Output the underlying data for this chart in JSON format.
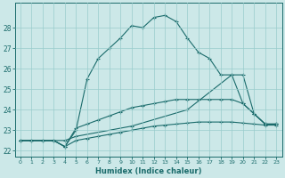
{
  "xlabel": "Humidex (Indice chaleur)",
  "bg_color": "#cce8e8",
  "grid_color": "#99cccc",
  "line_color": "#1a6b6b",
  "xlim": [
    -0.5,
    23.5
  ],
  "ylim": [
    21.7,
    29.2
  ],
  "xticks": [
    0,
    1,
    2,
    3,
    4,
    5,
    6,
    7,
    8,
    9,
    10,
    11,
    12,
    13,
    14,
    15,
    16,
    17,
    18,
    19,
    20,
    21,
    22,
    23
  ],
  "yticks": [
    22,
    23,
    24,
    25,
    26,
    27,
    28
  ],
  "series1": [
    [
      0,
      22.5
    ],
    [
      1,
      22.5
    ],
    [
      2,
      22.5
    ],
    [
      3,
      22.5
    ],
    [
      4,
      22.2
    ],
    [
      5,
      23.0
    ],
    [
      6,
      25.5
    ],
    [
      7,
      26.5
    ],
    [
      8,
      27.0
    ],
    [
      9,
      27.5
    ],
    [
      10,
      28.1
    ],
    [
      11,
      28.0
    ],
    [
      12,
      28.5
    ],
    [
      13,
      28.6
    ],
    [
      14,
      28.3
    ],
    [
      15,
      27.5
    ],
    [
      16,
      26.8
    ],
    [
      17,
      26.5
    ],
    [
      18,
      25.7
    ],
    [
      19,
      25.7
    ],
    [
      20,
      24.3
    ],
    [
      21,
      23.8
    ],
    [
      22,
      23.3
    ],
    [
      23,
      23.3
    ]
  ],
  "series2": [
    [
      0,
      22.5
    ],
    [
      1,
      22.5
    ],
    [
      2,
      22.5
    ],
    [
      3,
      22.5
    ],
    [
      4,
      22.2
    ],
    [
      5,
      23.1
    ],
    [
      6,
      23.3
    ],
    [
      7,
      23.5
    ],
    [
      8,
      23.7
    ],
    [
      9,
      23.9
    ],
    [
      10,
      24.1
    ],
    [
      11,
      24.2
    ],
    [
      12,
      24.3
    ],
    [
      13,
      24.4
    ],
    [
      14,
      24.5
    ],
    [
      15,
      24.5
    ],
    [
      16,
      24.5
    ],
    [
      17,
      24.5
    ],
    [
      18,
      24.5
    ],
    [
      19,
      24.5
    ],
    [
      20,
      24.3
    ],
    [
      21,
      23.8
    ],
    [
      22,
      23.3
    ],
    [
      23,
      23.3
    ]
  ],
  "series3": [
    [
      0,
      22.5
    ],
    [
      1,
      22.5
    ],
    [
      2,
      22.5
    ],
    [
      3,
      22.5
    ],
    [
      4,
      22.2
    ],
    [
      5,
      22.5
    ],
    [
      6,
      22.6
    ],
    [
      7,
      22.7
    ],
    [
      8,
      22.8
    ],
    [
      9,
      22.9
    ],
    [
      10,
      23.0
    ],
    [
      11,
      23.1
    ],
    [
      12,
      23.2
    ],
    [
      13,
      23.25
    ],
    [
      14,
      23.3
    ],
    [
      15,
      23.35
    ],
    [
      16,
      23.4
    ],
    [
      17,
      23.4
    ],
    [
      18,
      23.4
    ],
    [
      19,
      23.4
    ],
    [
      20,
      23.35
    ],
    [
      21,
      23.3
    ],
    [
      22,
      23.25
    ],
    [
      23,
      23.25
    ]
  ],
  "series4": [
    [
      0,
      22.5
    ],
    [
      4,
      22.5
    ],
    [
      5,
      22.7
    ],
    [
      10,
      23.2
    ],
    [
      15,
      24.0
    ],
    [
      19,
      25.7
    ],
    [
      20,
      25.7
    ],
    [
      21,
      23.8
    ],
    [
      22,
      23.3
    ],
    [
      23,
      23.3
    ]
  ]
}
